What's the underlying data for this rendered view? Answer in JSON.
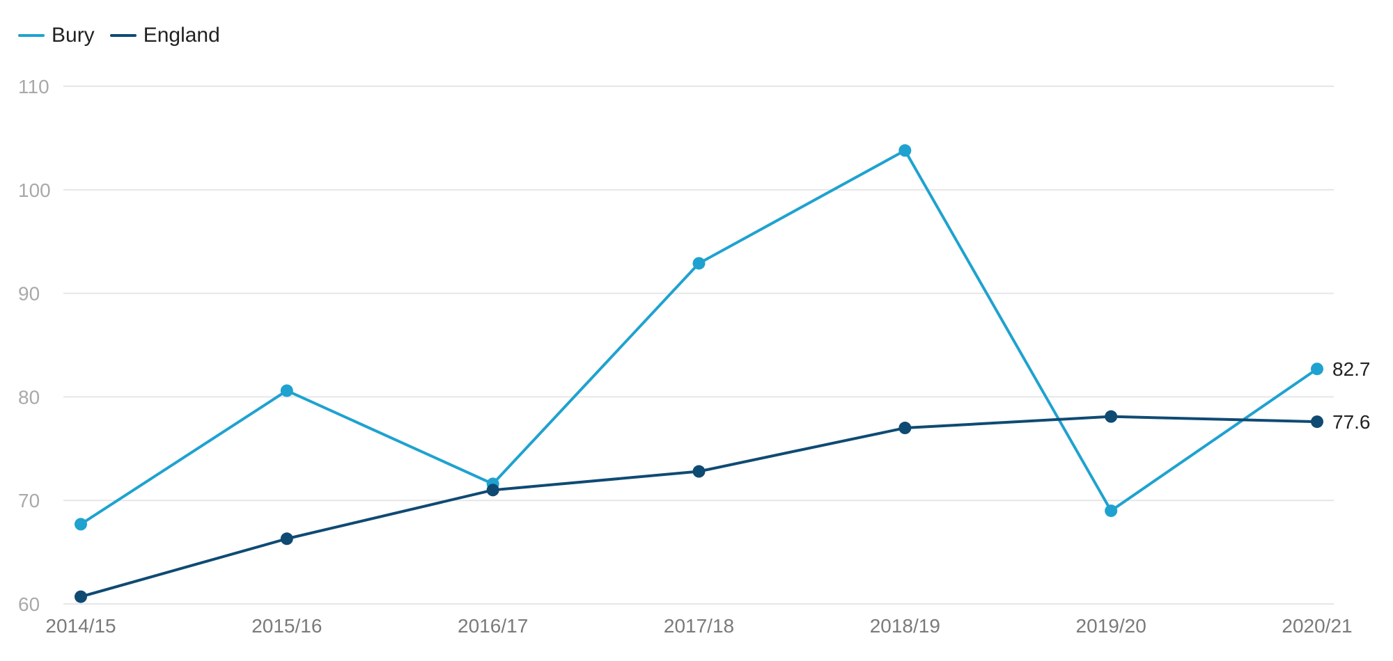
{
  "legend": {
    "items": [
      {
        "label": "Bury",
        "color": "#1fa2d0"
      },
      {
        "label": "England",
        "color": "#0f4a73"
      }
    ]
  },
  "chart_data": {
    "type": "line",
    "categories": [
      "2014/15",
      "2015/16",
      "2016/17",
      "2017/18",
      "2018/19",
      "2019/20",
      "2020/21"
    ],
    "series": [
      {
        "name": "Bury",
        "color": "#1fa2d0",
        "values": [
          67.7,
          80.6,
          71.6,
          92.9,
          103.8,
          69.0,
          82.7
        ],
        "end_label": "82.7"
      },
      {
        "name": "England",
        "color": "#0f4a73",
        "values": [
          60.7,
          66.3,
          71.0,
          72.8,
          77.0,
          78.1,
          77.6
        ],
        "end_label": "77.6"
      }
    ],
    "y_ticks": [
      60,
      70,
      80,
      90,
      100,
      110
    ],
    "ylim": [
      60,
      110
    ],
    "grid": true,
    "legend_position": "top-left",
    "title": "",
    "xlabel": "",
    "ylabel": ""
  }
}
